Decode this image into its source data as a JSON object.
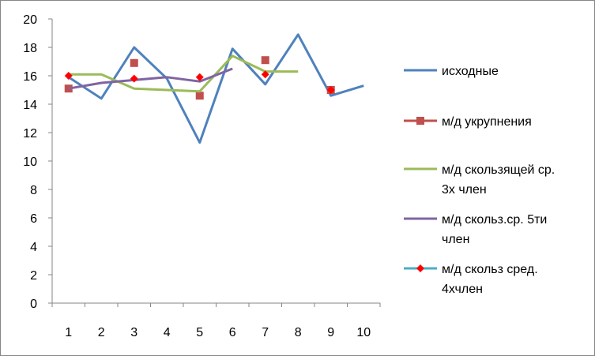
{
  "chart_data": {
    "type": "line",
    "x": [
      1,
      2,
      3,
      4,
      5,
      6,
      7,
      8,
      9,
      10
    ],
    "ylim": [
      0,
      20
    ],
    "yticks": [
      0,
      2,
      4,
      6,
      8,
      10,
      12,
      14,
      16,
      18,
      20
    ],
    "grid": false,
    "legend_position": "right",
    "series": [
      {
        "name": "исходные",
        "legend_lines": [
          "исходные"
        ],
        "color": "#4F81BD",
        "style": "line",
        "points": [
          [
            1,
            15.9
          ],
          [
            2,
            14.4
          ],
          [
            3,
            18.0
          ],
          [
            4,
            15.8
          ],
          [
            5,
            11.3
          ],
          [
            6,
            17.9
          ],
          [
            7,
            15.4
          ],
          [
            8,
            18.9
          ],
          [
            9,
            14.6
          ],
          [
            10,
            15.3
          ]
        ]
      },
      {
        "name": "м/д укрупнения",
        "legend_lines": [
          "м/д укрупнения"
        ],
        "color": "#C0504D",
        "style": "square-markers",
        "points": [
          [
            1,
            15.1
          ],
          [
            3,
            16.9
          ],
          [
            5,
            14.6
          ],
          [
            7,
            17.1
          ],
          [
            9,
            15.0
          ]
        ]
      },
      {
        "name": "м/д скользящей ср. 3х член",
        "legend_lines": [
          "м/д скользящей ср.",
          "3х член"
        ],
        "color": "#9BBB59",
        "style": "line",
        "points": [
          [
            1,
            16.1
          ],
          [
            2,
            16.1
          ],
          [
            3,
            15.1
          ],
          [
            4,
            15.0
          ],
          [
            5,
            14.9
          ],
          [
            6,
            17.4
          ],
          [
            7,
            16.3
          ],
          [
            8,
            16.3
          ]
        ]
      },
      {
        "name": "м/д скольз.ср. 5ти член",
        "legend_lines": [
          "м/д скольз.ср. 5ти",
          "член"
        ],
        "color": "#8064A2",
        "style": "line",
        "points": [
          [
            1,
            15.1
          ],
          [
            2,
            15.5
          ],
          [
            3,
            15.7
          ],
          [
            4,
            15.9
          ],
          [
            5,
            15.6
          ],
          [
            6,
            16.5
          ]
        ]
      },
      {
        "name": "м/д скольз сред. 4хчлен",
        "legend_lines": [
          "м/д скольз сред.",
          "4хчлен"
        ],
        "color": "#4BACC6",
        "marker_color": "#FF0000",
        "style": "diamond-markers",
        "points": [
          [
            1,
            16.0
          ],
          [
            3,
            15.8
          ],
          [
            5,
            15.9
          ],
          [
            7,
            16.1
          ],
          [
            9,
            15.0
          ]
        ]
      }
    ]
  }
}
